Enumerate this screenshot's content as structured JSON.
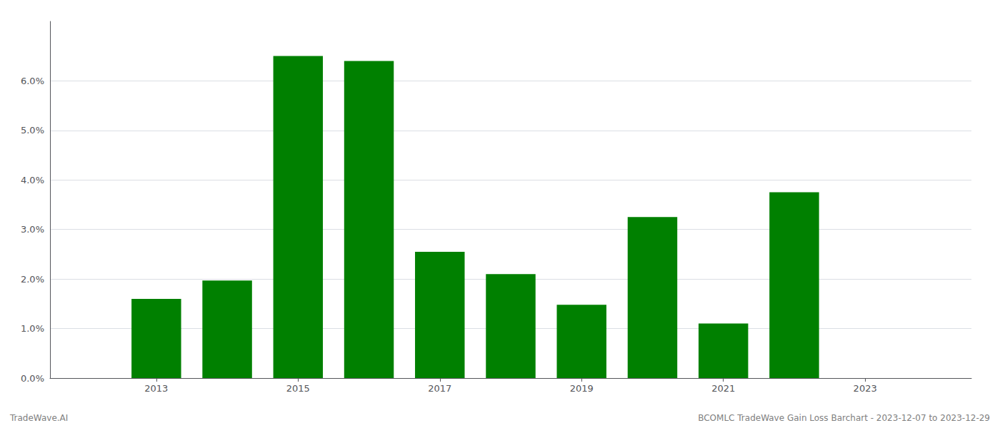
{
  "chart_data": {
    "type": "bar",
    "x": [
      2013,
      2014,
      2015,
      2016,
      2017,
      2018,
      2019,
      2020,
      2021,
      2022
    ],
    "values": [
      0.016,
      0.0197,
      0.065,
      0.064,
      0.0255,
      0.021,
      0.0148,
      0.0325,
      0.011,
      0.0375
    ],
    "color": "#008000",
    "xlim": [
      2011.5,
      2024.5
    ],
    "xticks": [
      2013,
      2015,
      2017,
      2019,
      2021,
      2023
    ],
    "ylim": [
      0,
      0.072
    ],
    "yticks": [
      {
        "value": 0.0,
        "label": "0.0%"
      },
      {
        "value": 0.01,
        "label": "1.0%"
      },
      {
        "value": 0.02,
        "label": "2.0%"
      },
      {
        "value": 0.03,
        "label": "3.0%"
      },
      {
        "value": 0.04,
        "label": "4.0%"
      },
      {
        "value": 0.05,
        "label": "5.0%"
      },
      {
        "value": 0.06,
        "label": "6.0%"
      }
    ],
    "grid": true,
    "annotations": [
      "TradeWave.AI",
      "BCOMLC TradeWave Gain Loss Barchart - 2023-12-07 to 2023-12-29"
    ]
  }
}
